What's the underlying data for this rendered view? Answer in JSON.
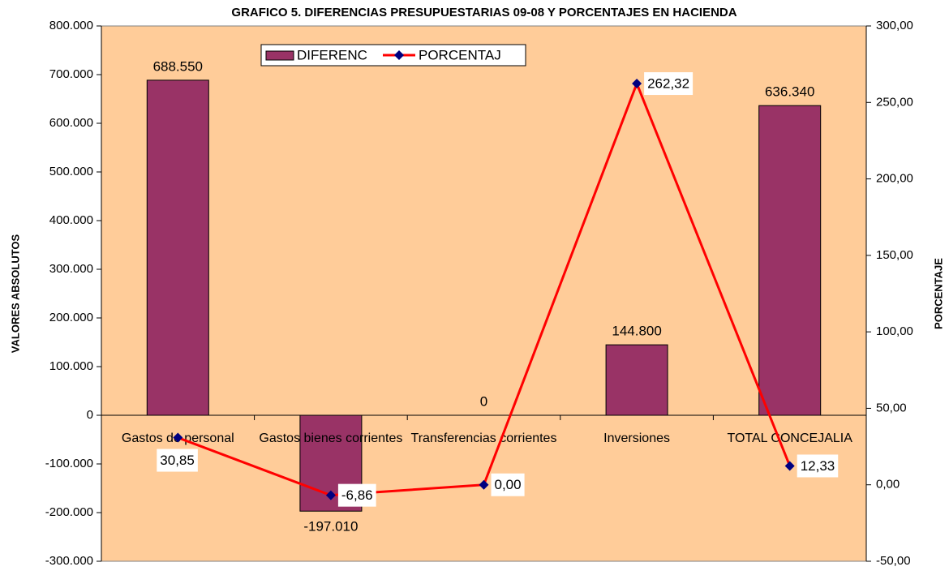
{
  "chart_data": {
    "type": "bar_line",
    "title": "GRAFICO 5. DIFERENCIAS PRESUPUESTARIAS 09-08 Y PORCENTAJES EN HACIENDA",
    "ylabel": "VALORES ABSOLUTOS",
    "y2label": "PORCENTAJE",
    "categories": [
      "Gastos de personal",
      "Gastos bienes corrientes",
      "Transferencias corrientes",
      "Inversiones",
      "TOTAL CONCEJALIA"
    ],
    "series": [
      {
        "name": "DIFERENC",
        "type": "bar",
        "color": "#993366",
        "values": [
          688550,
          -197010,
          0,
          144800,
          636340
        ],
        "value_labels": [
          "688.550",
          "-197.010",
          "0",
          "144.800",
          "636.340"
        ]
      },
      {
        "name": "PORCENTAJ",
        "type": "line",
        "axis": "y2",
        "color": "#ff0000",
        "marker_color": "#000080",
        "values": [
          30.85,
          -6.86,
          0.0,
          262.32,
          12.33
        ],
        "value_labels": [
          "30,85",
          "-6,86",
          "0,00",
          "262,32",
          "12,33"
        ]
      }
    ],
    "ylim": [
      -300000,
      800000
    ],
    "yticks": [
      {
        "value": -300000,
        "label": "-300.000"
      },
      {
        "value": -200000,
        "label": "-200.000"
      },
      {
        "value": -100000,
        "label": "-100.000"
      },
      0,
      {
        "value": 100000,
        "label": "100.000"
      },
      {
        "value": 200000,
        "label": "200.000"
      },
      {
        "value": 300000,
        "label": "300.000"
      },
      {
        "value": 400000,
        "label": "400.000"
      },
      {
        "value": 500000,
        "label": "500.000"
      },
      {
        "value": 600000,
        "label": "600.000"
      },
      {
        "value": 700000,
        "label": "700.000"
      },
      {
        "value": 800000,
        "label": "800.000"
      }
    ],
    "y2lim": [
      -50,
      300
    ],
    "y2ticks": [
      {
        "value": -50,
        "label": "-50,00"
      },
      {
        "value": 0,
        "label": "0,00"
      },
      {
        "value": 50,
        "label": "50,00"
      },
      {
        "value": 100,
        "label": "100,00"
      },
      {
        "value": 150,
        "label": "150,00"
      },
      {
        "value": 200,
        "label": "200,00"
      },
      {
        "value": 250,
        "label": "250,00"
      },
      {
        "value": 300,
        "label": "300,00"
      }
    ],
    "background": "#ffcc99",
    "legend": "top-left"
  }
}
